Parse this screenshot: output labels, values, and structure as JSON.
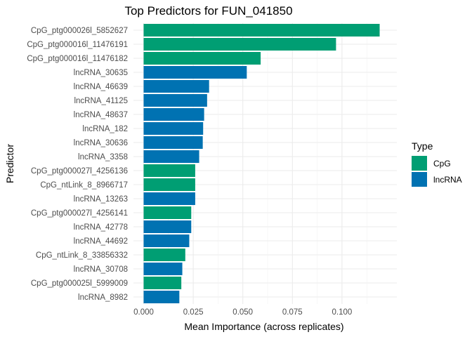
{
  "chart_data": {
    "type": "bar",
    "orientation": "horizontal",
    "title": "Top Predictors for FUN_041850",
    "xlabel": "Mean Importance (across replicates)",
    "ylabel": "Predictor",
    "xlim": [
      0,
      0.122
    ],
    "xticks": [
      0,
      0.025,
      0.05,
      0.075,
      0.1
    ],
    "xtick_labels": [
      "0.000",
      "0.025",
      "0.050",
      "0.075",
      "0.100"
    ],
    "grid": true,
    "legend": {
      "title": "Type",
      "position": "right",
      "entries": [
        {
          "label": "CpG",
          "color": "#009E73"
        },
        {
          "label": "lncRNA",
          "color": "#0072B2"
        }
      ]
    },
    "bars": [
      {
        "label": "CpG_ptg000026l_5852627",
        "value": 0.119,
        "type": "CpG"
      },
      {
        "label": "CpG_ptg000016l_11476191",
        "value": 0.097,
        "type": "CpG"
      },
      {
        "label": "CpG_ptg000016l_11476182",
        "value": 0.059,
        "type": "CpG"
      },
      {
        "label": "lncRNA_30635",
        "value": 0.052,
        "type": "lncRNA"
      },
      {
        "label": "lncRNA_46639",
        "value": 0.033,
        "type": "lncRNA"
      },
      {
        "label": "lncRNA_41125",
        "value": 0.032,
        "type": "lncRNA"
      },
      {
        "label": "lncRNA_48637",
        "value": 0.0305,
        "type": "lncRNA"
      },
      {
        "label": "lncRNA_182",
        "value": 0.03,
        "type": "lncRNA"
      },
      {
        "label": "lncRNA_30636",
        "value": 0.0298,
        "type": "lncRNA"
      },
      {
        "label": "lncRNA_3358",
        "value": 0.028,
        "type": "lncRNA"
      },
      {
        "label": "CpG_ptg000027l_4256136",
        "value": 0.026,
        "type": "CpG"
      },
      {
        "label": "CpG_ntLink_8_8966717",
        "value": 0.026,
        "type": "CpG"
      },
      {
        "label": "lncRNA_13263",
        "value": 0.026,
        "type": "lncRNA"
      },
      {
        "label": "CpG_ptg000027l_4256141",
        "value": 0.024,
        "type": "CpG"
      },
      {
        "label": "lncRNA_42778",
        "value": 0.024,
        "type": "lncRNA"
      },
      {
        "label": "lncRNA_44692",
        "value": 0.023,
        "type": "lncRNA"
      },
      {
        "label": "CpG_ntLink_8_33856332",
        "value": 0.021,
        "type": "CpG"
      },
      {
        "label": "lncRNA_30708",
        "value": 0.0195,
        "type": "lncRNA"
      },
      {
        "label": "CpG_ptg000025l_5999009",
        "value": 0.019,
        "type": "CpG"
      },
      {
        "label": "lncRNA_8982",
        "value": 0.018,
        "type": "lncRNA"
      }
    ]
  }
}
